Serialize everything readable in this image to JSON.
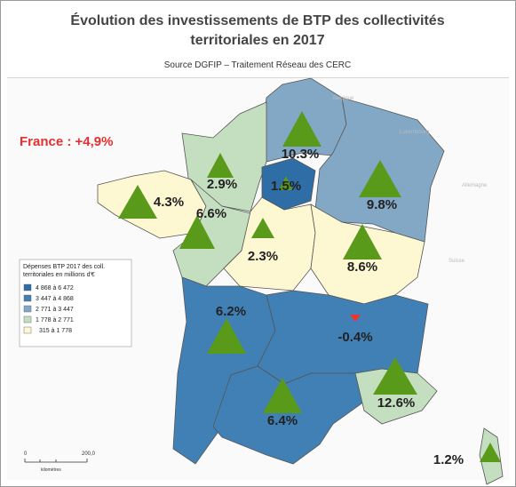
{
  "header": {
    "title_line1": "Évolution des investissements de BTP des collectivités",
    "title_line2": "territoriales en 2017",
    "source": "Source DGFIP – Traitement Réseau des CERC"
  },
  "france_total": "France : +4,9%",
  "regions": {
    "labels": [
      "10.3%",
      "2.9%",
      "1.5%",
      "9.8%",
      "4.3%",
      "6.6%",
      "2.3%",
      "8.6%",
      "6.2%",
      "-0.4%",
      "6.4%",
      "12.6%",
      "1.2%"
    ]
  },
  "countries": [
    "Belgique",
    "Luxembourg",
    "Allemagne",
    "Suisse"
  ],
  "legend": {
    "title_line1": "Dépenses BTP 2017 des coll.",
    "title_line2": "territoriales en millions d'€",
    "items": [
      "4 868 à 6 472",
      "3 447 à 4 868",
      "2 771 à 3 447",
      "1 778 à 2 771",
      "315 à 1 778"
    ]
  },
  "scale": {
    "start": "0",
    "end": "200,0",
    "unit": "kilomètres"
  }
}
